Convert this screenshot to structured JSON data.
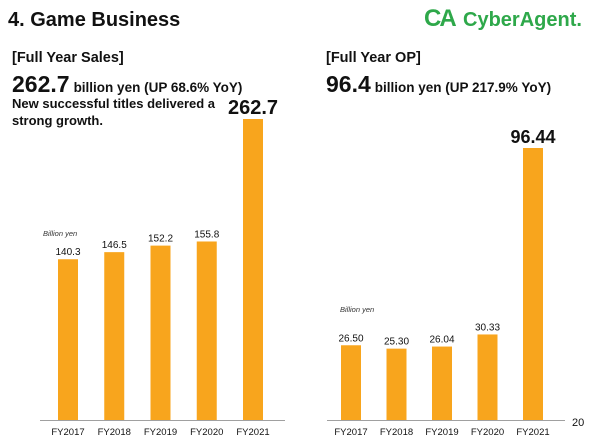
{
  "slide": {
    "title": "4. Game Business",
    "page_number": "20"
  },
  "logo": {
    "mark": "CA",
    "text": "CyberAgent."
  },
  "panels": [
    {
      "headline_value": "262.7",
      "headline_text": "billion yen (UP 68.6% YoY)",
      "note": "New successful titles delivered a\nstrong growth."
    },
    {
      "headline_value": "96.4",
      "headline_text": "billion yen (UP 217.9% YoY)"
    }
  ],
  "chart_data": [
    {
      "type": "bar",
      "title": "[Full Year Sales]",
      "ylabel": "Billion yen",
      "categories": [
        "FY2017",
        "FY2018",
        "FY2019",
        "FY2020",
        "FY2021"
      ],
      "values": [
        140.3,
        146.5,
        152.2,
        155.8,
        262.7
      ],
      "value_labels": [
        "140.3",
        "146.5",
        "152.2",
        "155.8",
        "262.7"
      ],
      "grid": false
    },
    {
      "type": "bar",
      "title": "[Full Year OP]",
      "ylabel": "Billion yen",
      "categories": [
        "FY2017",
        "FY2018",
        "FY2019",
        "FY2020",
        "FY2021"
      ],
      "values": [
        26.5,
        25.3,
        26.04,
        30.33,
        96.44
      ],
      "value_labels": [
        "26.50",
        "25.30",
        "26.04",
        "30.33",
        "96.44"
      ],
      "grid": false
    }
  ],
  "colors": {
    "bar": "#f8a51d",
    "logo": "#2ea84a",
    "text": "#111111",
    "axis": "#a0a0a0"
  }
}
